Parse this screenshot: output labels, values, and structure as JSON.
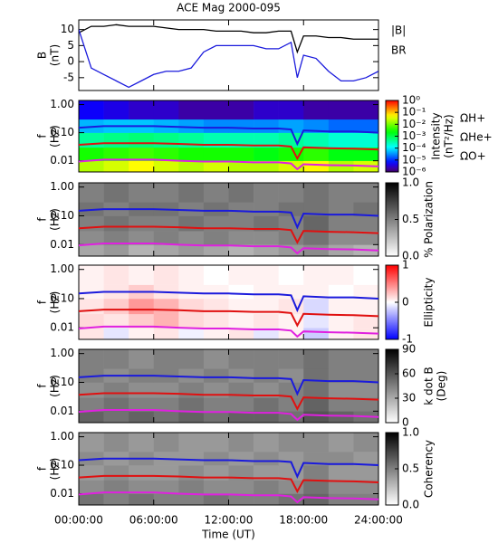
{
  "chart_data": [
    {
      "type": "line",
      "title": "ACE Mag 2000-095",
      "ylabel": [
        "B",
        "(nT)"
      ],
      "xlim": [
        0,
        24
      ],
      "ylim": [
        -9,
        13
      ],
      "yticks": [
        -5,
        0,
        5,
        10
      ],
      "legend": "right-outside",
      "x": [
        0,
        1,
        2,
        3,
        4,
        5,
        6,
        7,
        8,
        9,
        10,
        11,
        12,
        13,
        14,
        15,
        16,
        17,
        17.5,
        18,
        19,
        20,
        21,
        22,
        23,
        24
      ],
      "series": [
        {
          "name": "|B|",
          "color": "#000000",
          "values": [
            9,
            11,
            11,
            11.5,
            11,
            11,
            11,
            10.5,
            10,
            10,
            10,
            9.5,
            9.5,
            9.5,
            9,
            9,
            9.5,
            9.5,
            3,
            8,
            8,
            7.5,
            7.5,
            7,
            7,
            7
          ]
        },
        {
          "name": "BR",
          "color": "#1a1adc",
          "values": [
            10,
            -2,
            -4,
            -6,
            -8,
            -6,
            -4,
            -3,
            -3,
            -2,
            3,
            5,
            5,
            5,
            5,
            4,
            4,
            6,
            -5,
            2,
            1,
            -3,
            -6,
            -6,
            -5,
            -3
          ]
        }
      ]
    },
    {
      "type": "heatmap",
      "ylabel": [
        "f",
        "(Hz)"
      ],
      "xlim": [
        0,
        24
      ],
      "ylim": [
        0.004,
        1.4
      ],
      "yscale": "log",
      "yticks": [
        {
          "value": 1,
          "label": "1.00"
        },
        {
          "value": 0.1,
          "label": "0.10"
        },
        {
          "value": 0.01,
          "label": "0.01"
        }
      ],
      "colormap": "rainbow",
      "zscale": "log",
      "zlim": [
        1e-06,
        1
      ],
      "zlabel": [
        "Intensity",
        "(nT²/Hz)"
      ],
      "zticks": [
        {
          "value": 1,
          "label": "10⁰"
        },
        {
          "value": 0.1,
          "label": "10⁻¹"
        },
        {
          "value": 0.01,
          "label": "10⁻²"
        },
        {
          "value": 0.001,
          "label": "10⁻³"
        },
        {
          "value": 0.0001,
          "label": "10⁻⁴"
        },
        {
          "value": 1e-05,
          "label": "10⁻⁵"
        },
        {
          "value": 1e-06,
          "label": "10⁻⁶"
        }
      ],
      "x_bins": [
        0,
        2,
        4,
        6,
        8,
        10,
        12,
        14,
        16,
        18,
        20,
        22,
        24
      ],
      "y_bins": [
        0.004,
        0.01,
        0.03,
        0.1,
        0.3,
        1.4
      ],
      "z": [
        [
          0.02,
          0.03,
          0.05,
          0.03,
          0.02,
          0.03,
          0.02,
          0.02,
          0.03,
          0.05,
          0.02,
          0.03
        ],
        [
          0.003,
          0.004,
          0.005,
          0.004,
          0.003,
          0.003,
          0.003,
          0.002,
          0.003,
          0.004,
          0.002,
          0.002
        ],
        [
          0.0004,
          0.0005,
          0.0006,
          0.0005,
          0.0004,
          0.0003,
          0.0003,
          0.0003,
          0.0004,
          0.0003,
          0.0002,
          0.0002
        ],
        [
          5e-05,
          6e-05,
          6e-05,
          5e-05,
          4e-05,
          3e-05,
          3e-05,
          3e-05,
          4e-05,
          3e-05,
          2e-05,
          2e-05
        ],
        [
          5e-06,
          4e-06,
          3e-06,
          3e-06,
          2e-06,
          2e-06,
          2e-06,
          3e-06,
          3e-06,
          2e-06,
          2e-06,
          2e-06
        ]
      ],
      "x": [
        0,
        2,
        4,
        6,
        8,
        10,
        12,
        14,
        16,
        17,
        17.5,
        18,
        20,
        22,
        24
      ],
      "series": [
        {
          "name": "ΩH+",
          "color": "#1a1adc",
          "values": [
            0.15,
            0.17,
            0.17,
            0.17,
            0.16,
            0.15,
            0.15,
            0.14,
            0.14,
            0.13,
            0.04,
            0.12,
            0.11,
            0.11,
            0.1
          ]
        },
        {
          "name": "ΩHe+",
          "color": "#e01010",
          "values": [
            0.037,
            0.042,
            0.042,
            0.042,
            0.04,
            0.037,
            0.037,
            0.035,
            0.035,
            0.032,
            0.012,
            0.03,
            0.028,
            0.027,
            0.025
          ]
        },
        {
          "name": "ΩO+",
          "color": "#e020e0",
          "values": [
            0.0094,
            0.011,
            0.011,
            0.011,
            0.01,
            0.0094,
            0.0094,
            0.0088,
            0.0088,
            0.008,
            0.005,
            0.0075,
            0.007,
            0.0068,
            0.0063
          ]
        }
      ]
    },
    {
      "type": "heatmap",
      "ylabel": [
        "f",
        "(Hz)"
      ],
      "xlim": [
        0,
        24
      ],
      "ylim": [
        0.004,
        1.4
      ],
      "yscale": "log",
      "yticks": [
        {
          "value": 1,
          "label": "1.00"
        },
        {
          "value": 0.1,
          "label": "0.10"
        },
        {
          "value": 0.01,
          "label": "0.01"
        }
      ],
      "colormap": "gray",
      "zlim": [
        0,
        1
      ],
      "zlabel": [
        "% Polarization"
      ],
      "zticks": [
        {
          "value": 0,
          "label": "0.0"
        },
        {
          "value": 0.5,
          "label": "0.5"
        },
        {
          "value": 1,
          "label": "1.0"
        }
      ],
      "x_bins": [
        0,
        2,
        4,
        6,
        8,
        10,
        12,
        14,
        16,
        18,
        20,
        22,
        24
      ],
      "y_bins": [
        0.004,
        0.01,
        0.03,
        0.1,
        0.3,
        1.4
      ],
      "z": [
        [
          0.35,
          0.4,
          0.3,
          0.35,
          0.4,
          0.35,
          0.3,
          0.35,
          0.4,
          0.45,
          0.35,
          0.3
        ],
        [
          0.45,
          0.5,
          0.45,
          0.5,
          0.45,
          0.5,
          0.45,
          0.45,
          0.5,
          0.55,
          0.45,
          0.45
        ],
        [
          0.5,
          0.55,
          0.5,
          0.5,
          0.55,
          0.5,
          0.5,
          0.55,
          0.5,
          0.6,
          0.5,
          0.5
        ],
        [
          0.55,
          0.5,
          0.55,
          0.55,
          0.5,
          0.55,
          0.5,
          0.5,
          0.55,
          0.55,
          0.5,
          0.55
        ],
        [
          0.5,
          0.55,
          0.5,
          0.5,
          0.55,
          0.5,
          0.55,
          0.5,
          0.5,
          0.55,
          0.5,
          0.5
        ]
      ],
      "x": [
        0,
        2,
        4,
        6,
        8,
        10,
        12,
        14,
        16,
        17,
        17.5,
        18,
        20,
        22,
        24
      ],
      "series": [
        {
          "color": "#1a1adc",
          "values": [
            0.15,
            0.17,
            0.17,
            0.17,
            0.16,
            0.15,
            0.15,
            0.14,
            0.14,
            0.13,
            0.04,
            0.12,
            0.11,
            0.11,
            0.1
          ]
        },
        {
          "color": "#e01010",
          "values": [
            0.037,
            0.042,
            0.042,
            0.042,
            0.04,
            0.037,
            0.037,
            0.035,
            0.035,
            0.032,
            0.012,
            0.03,
            0.028,
            0.027,
            0.025
          ]
        },
        {
          "color": "#e020e0",
          "values": [
            0.0094,
            0.011,
            0.011,
            0.011,
            0.01,
            0.0094,
            0.0094,
            0.0088,
            0.0088,
            0.008,
            0.005,
            0.0075,
            0.007,
            0.0068,
            0.0063
          ]
        }
      ]
    },
    {
      "type": "heatmap",
      "ylabel": [
        "f",
        "(Hz)"
      ],
      "xlim": [
        0,
        24
      ],
      "ylim": [
        0.004,
        1.4
      ],
      "yscale": "log",
      "yticks": [
        {
          "value": 1,
          "label": "1.00"
        },
        {
          "value": 0.1,
          "label": "0.10"
        },
        {
          "value": 0.01,
          "label": "0.01"
        }
      ],
      "colormap": "bwr",
      "zlim": [
        -1,
        1
      ],
      "zlabel": [
        "Ellipticity"
      ],
      "zticks": [
        -1,
        0,
        1
      ],
      "x_bins": [
        0,
        2,
        4,
        6,
        8,
        10,
        12,
        14,
        16,
        18,
        20,
        22,
        24
      ],
      "y_bins": [
        0.004,
        0.01,
        0.03,
        0.1,
        0.3,
        1.4
      ],
      "z": [
        [
          0.1,
          -0.1,
          0.05,
          0.1,
          -0.05,
          0.05,
          0.1,
          -0.1,
          0.05,
          -0.2,
          0.05,
          0.1
        ],
        [
          0.15,
          0.1,
          0.2,
          0.3,
          0.15,
          0.1,
          0.05,
          0.1,
          0.05,
          -0.1,
          0.05,
          0.1
        ],
        [
          0.1,
          0.2,
          0.4,
          0.3,
          0.15,
          0.1,
          0.05,
          0.05,
          0.1,
          -0.15,
          0.05,
          0.05
        ],
        [
          0.05,
          0.1,
          0.2,
          0.1,
          0.05,
          0.05,
          0.0,
          0.05,
          0.05,
          0.05,
          0.0,
          0.05
        ],
        [
          0.05,
          0.1,
          0.05,
          0.1,
          0.05,
          0.0,
          0.05,
          0.05,
          0.0,
          0.05,
          0.05,
          0.0
        ]
      ],
      "x": [
        0,
        2,
        4,
        6,
        8,
        10,
        12,
        14,
        16,
        17,
        17.5,
        18,
        20,
        22,
        24
      ],
      "series": [
        {
          "color": "#1a1adc",
          "values": [
            0.15,
            0.17,
            0.17,
            0.17,
            0.16,
            0.15,
            0.15,
            0.14,
            0.14,
            0.13,
            0.04,
            0.12,
            0.11,
            0.11,
            0.1
          ]
        },
        {
          "color": "#e01010",
          "values": [
            0.037,
            0.042,
            0.042,
            0.042,
            0.04,
            0.037,
            0.037,
            0.035,
            0.035,
            0.032,
            0.012,
            0.03,
            0.028,
            0.027,
            0.025
          ]
        },
        {
          "color": "#e020e0",
          "values": [
            0.0094,
            0.011,
            0.011,
            0.011,
            0.01,
            0.0094,
            0.0094,
            0.0088,
            0.0088,
            0.008,
            0.005,
            0.0075,
            0.007,
            0.0068,
            0.0063
          ]
        }
      ]
    },
    {
      "type": "heatmap",
      "ylabel": [
        "f",
        "(Hz)"
      ],
      "xlim": [
        0,
        24
      ],
      "ylim": [
        0.004,
        1.4
      ],
      "yscale": "log",
      "yticks": [
        {
          "value": 1,
          "label": "1.00"
        },
        {
          "value": 0.1,
          "label": "0.10"
        },
        {
          "value": 0.01,
          "label": "0.01"
        }
      ],
      "colormap": "gray",
      "zlim": [
        0,
        90
      ],
      "zlabel": [
        "k dot B",
        "(Deg)"
      ],
      "zticks": [
        0,
        30,
        60,
        90
      ],
      "x_bins": [
        0,
        2,
        4,
        6,
        8,
        10,
        12,
        14,
        16,
        18,
        20,
        22,
        24
      ],
      "y_bins": [
        0.004,
        0.01,
        0.03,
        0.1,
        0.3,
        1.4
      ],
      "z": [
        [
          55,
          50,
          55,
          50,
          55,
          50,
          55,
          55,
          50,
          60,
          55,
          50
        ],
        [
          45,
          50,
          45,
          45,
          50,
          45,
          45,
          50,
          45,
          55,
          45,
          45
        ],
        [
          40,
          45,
          40,
          40,
          45,
          40,
          45,
          40,
          45,
          50,
          40,
          40
        ],
        [
          45,
          40,
          45,
          45,
          40,
          45,
          40,
          45,
          40,
          50,
          45,
          45
        ],
        [
          45,
          45,
          40,
          45,
          45,
          40,
          45,
          45,
          45,
          50,
          45,
          45
        ]
      ],
      "x": [
        0,
        2,
        4,
        6,
        8,
        10,
        12,
        14,
        16,
        17,
        17.5,
        18,
        20,
        22,
        24
      ],
      "series": [
        {
          "color": "#1a1adc",
          "values": [
            0.15,
            0.17,
            0.17,
            0.17,
            0.16,
            0.15,
            0.15,
            0.14,
            0.14,
            0.13,
            0.04,
            0.12,
            0.11,
            0.11,
            0.1
          ]
        },
        {
          "color": "#e01010",
          "values": [
            0.037,
            0.042,
            0.042,
            0.042,
            0.04,
            0.037,
            0.037,
            0.035,
            0.035,
            0.032,
            0.012,
            0.03,
            0.028,
            0.027,
            0.025
          ]
        },
        {
          "color": "#e020e0",
          "values": [
            0.0094,
            0.011,
            0.011,
            0.011,
            0.01,
            0.0094,
            0.0094,
            0.0088,
            0.0088,
            0.008,
            0.005,
            0.0075,
            0.007,
            0.0068,
            0.0063
          ]
        }
      ]
    },
    {
      "type": "heatmap",
      "ylabel": [
        "f",
        "(Hz)"
      ],
      "xlim": [
        0,
        24
      ],
      "ylim": [
        0.004,
        1.4
      ],
      "yscale": "log",
      "yticks": [
        {
          "value": 1,
          "label": "1.00"
        },
        {
          "value": 0.1,
          "label": "0.10"
        },
        {
          "value": 0.01,
          "label": "0.01"
        }
      ],
      "colormap": "gray",
      "zlim": [
        0,
        1
      ],
      "zlabel": [
        "Coherency"
      ],
      "zticks": [
        {
          "value": 0,
          "label": "0.0"
        },
        {
          "value": 0.5,
          "label": "0.5"
        },
        {
          "value": 1,
          "label": "1.0"
        }
      ],
      "x_bins": [
        0,
        2,
        4,
        6,
        8,
        10,
        12,
        14,
        16,
        18,
        20,
        22,
        24
      ],
      "y_bins": [
        0.004,
        0.01,
        0.03,
        0.1,
        0.3,
        1.4
      ],
      "z": [
        [
          0.55,
          0.5,
          0.55,
          0.5,
          0.5,
          0.55,
          0.5,
          0.5,
          0.55,
          0.6,
          0.5,
          0.5
        ],
        [
          0.45,
          0.5,
          0.45,
          0.45,
          0.5,
          0.45,
          0.45,
          0.5,
          0.45,
          0.55,
          0.45,
          0.45
        ],
        [
          0.4,
          0.45,
          0.4,
          0.4,
          0.45,
          0.4,
          0.45,
          0.4,
          0.4,
          0.5,
          0.4,
          0.4
        ],
        [
          0.45,
          0.4,
          0.45,
          0.4,
          0.4,
          0.45,
          0.4,
          0.45,
          0.4,
          0.45,
          0.45,
          0.4
        ],
        [
          0.4,
          0.45,
          0.4,
          0.45,
          0.4,
          0.4,
          0.45,
          0.4,
          0.45,
          0.45,
          0.4,
          0.45
        ]
      ],
      "x": [
        0,
        2,
        4,
        6,
        8,
        10,
        12,
        14,
        16,
        17,
        17.5,
        18,
        20,
        22,
        24
      ],
      "series": [
        {
          "color": "#1a1adc",
          "values": [
            0.15,
            0.17,
            0.17,
            0.17,
            0.16,
            0.15,
            0.15,
            0.14,
            0.14,
            0.13,
            0.04,
            0.12,
            0.11,
            0.11,
            0.1
          ]
        },
        {
          "color": "#e01010",
          "values": [
            0.037,
            0.042,
            0.042,
            0.042,
            0.04,
            0.037,
            0.037,
            0.035,
            0.035,
            0.032,
            0.012,
            0.03,
            0.028,
            0.027,
            0.025
          ]
        },
        {
          "color": "#e020e0",
          "values": [
            0.0094,
            0.011,
            0.011,
            0.011,
            0.01,
            0.0094,
            0.0094,
            0.0088,
            0.0088,
            0.008,
            0.005,
            0.0075,
            0.007,
            0.0068,
            0.0063
          ]
        }
      ],
      "xticks": [
        {
          "value": 0,
          "label": "00:00:00"
        },
        {
          "value": 6,
          "label": "06:00:00"
        },
        {
          "value": 12,
          "label": "12:00:00"
        },
        {
          "value": 18,
          "label": "18:00:00"
        },
        {
          "value": 24,
          "label": "24:00:00"
        }
      ],
      "xlabel": "Time (UT)"
    }
  ]
}
